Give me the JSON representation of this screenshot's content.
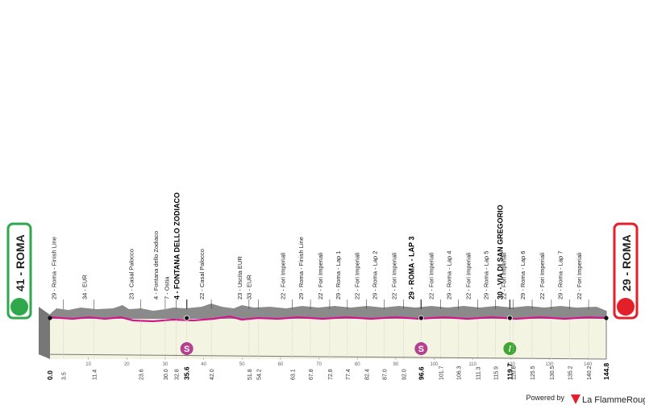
{
  "start": {
    "label": "41 - ROMA",
    "km": "0.0"
  },
  "finish": {
    "label": "29 - ROMA",
    "km": "144.8"
  },
  "waypoints": [
    {
      "name": "29 - Roma - Finish Line",
      "km": "3.5"
    },
    {
      "name": "34 - EUR",
      "km": "11.4"
    },
    {
      "name": "23 - Casal Palocco",
      "km": "23.6"
    },
    {
      "name": "4 - Fontana dello Zodiaco",
      "km": "30.0"
    },
    {
      "name": "7 - Ostia",
      "km": "32.8"
    },
    {
      "name": "4 - FONTANA DELLO ZODIACO",
      "km": "35.6",
      "bold": true,
      "marker": "sprint"
    },
    {
      "name": "22 - Casal Palocco",
      "km": "42.0"
    },
    {
      "name": "23 - Uscita EUR",
      "km": "51.8"
    },
    {
      "name": "33 - EUR",
      "km": "54.2"
    },
    {
      "name": "22 - Fori Imperiali",
      "km": "63.1"
    },
    {
      "name": "29 - Roma - Finish Line",
      "km": "67.8"
    },
    {
      "name": "22 - Fori Imperiali",
      "km": "72.8"
    },
    {
      "name": "29 - Roma - Lap 1",
      "km": "77.4"
    },
    {
      "name": "22 - Fori Imperiali",
      "km": "82.4"
    },
    {
      "name": "29 - Roma - Lap 2",
      "km": "87.0"
    },
    {
      "name": "22 - Fori Imperiali",
      "km": "92.0"
    },
    {
      "name": "29 - ROMA - LAP 3",
      "km": "96.6",
      "bold": true,
      "marker": "sprint"
    },
    {
      "name": "22 - Fori Imperiali",
      "km": "101.7"
    },
    {
      "name": "29 - Roma - Lap 4",
      "km": "106.3"
    },
    {
      "name": "22 - Fori Imperiali",
      "km": "111.3"
    },
    {
      "name": "29 - Roma - Lap 5",
      "km": "115.9"
    },
    {
      "name": "30 - VIA DI SAN GREGORIO",
      "km": "119.7",
      "bold": true,
      "marker": "climb"
    },
    {
      "name": "22 - Fori Imperiali",
      "km": "120.6"
    },
    {
      "name": "29 - Roma - Lap 6",
      "km": "125.5"
    },
    {
      "name": "22 - Fori Imperiali",
      "km": "130.5"
    },
    {
      "name": "29 - Roma - Lap 7",
      "km": "135.2"
    },
    {
      "name": "22 - Fori Imperiali",
      "km": "140.2"
    }
  ],
  "km_ticks": [
    10,
    20,
    30,
    40,
    50,
    60,
    70,
    80,
    90,
    100,
    110,
    120,
    130,
    140
  ],
  "sprint_symbol": "S",
  "climb_symbol": "/",
  "powered_by": "Powered by",
  "brand": "La FlammeRouge"
}
